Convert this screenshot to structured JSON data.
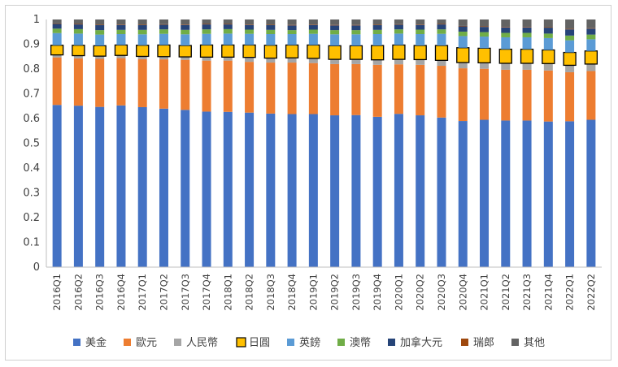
{
  "chart_data": {
    "type": "bar",
    "stacked": true,
    "title": "",
    "xlabel": "",
    "ylabel": "",
    "ylim": [
      0,
      1
    ],
    "yticks": [
      "0",
      "0.1",
      "0.2",
      "0.3",
      "0.4",
      "0.5",
      "0.6",
      "0.7",
      "0.8",
      "0.9",
      "1"
    ],
    "grid": false,
    "legend_position": "bottom",
    "categories": [
      "2016Q1",
      "2016Q2",
      "2016Q3",
      "2016Q4",
      "2017Q1",
      "2017Q2",
      "2017Q3",
      "2017Q4",
      "2018Q1",
      "2018Q2",
      "2018Q3",
      "2018Q4",
      "2019Q1",
      "2019Q2",
      "2019Q3",
      "2019Q4",
      "2020Q1",
      "2020Q2",
      "2020Q3",
      "2020Q4",
      "2021Q1",
      "2021Q2",
      "2021Q3",
      "2021Q4",
      "2022Q1",
      "2022Q2"
    ],
    "series": [
      {
        "name": "美金",
        "color": "#4472C4",
        "values": [
          0.655,
          0.652,
          0.647,
          0.653,
          0.646,
          0.64,
          0.635,
          0.628,
          0.627,
          0.624,
          0.62,
          0.618,
          0.618,
          0.613,
          0.614,
          0.607,
          0.619,
          0.613,
          0.604,
          0.59,
          0.595,
          0.592,
          0.592,
          0.588,
          0.589,
          0.595
        ]
      },
      {
        "name": "歐元",
        "color": "#ED7D31",
        "values": [
          0.192,
          0.191,
          0.194,
          0.191,
          0.194,
          0.199,
          0.202,
          0.206,
          0.207,
          0.205,
          0.206,
          0.208,
          0.206,
          0.207,
          0.206,
          0.21,
          0.2,
          0.204,
          0.209,
          0.213,
          0.206,
          0.205,
          0.205,
          0.206,
          0.198,
          0.197
        ]
      },
      {
        "name": "人民幣",
        "color": "#A5A5A5",
        "values": [
          0.01,
          0.011,
          0.011,
          0.011,
          0.011,
          0.011,
          0.012,
          0.014,
          0.014,
          0.018,
          0.018,
          0.019,
          0.019,
          0.019,
          0.019,
          0.02,
          0.02,
          0.021,
          0.022,
          0.023,
          0.024,
          0.026,
          0.026,
          0.028,
          0.028,
          0.028
        ]
      },
      {
        "name": "日圓",
        "color": "#FFC000",
        "values": [
          0.039,
          0.042,
          0.042,
          0.042,
          0.045,
          0.047,
          0.046,
          0.049,
          0.049,
          0.05,
          0.052,
          0.052,
          0.054,
          0.055,
          0.055,
          0.058,
          0.058,
          0.057,
          0.06,
          0.06,
          0.059,
          0.057,
          0.057,
          0.055,
          0.052,
          0.053
        ]
      },
      {
        "name": "英鎊",
        "color": "#5B9BD5",
        "values": [
          0.049,
          0.047,
          0.045,
          0.044,
          0.044,
          0.045,
          0.045,
          0.045,
          0.046,
          0.045,
          0.045,
          0.044,
          0.045,
          0.046,
          0.046,
          0.046,
          0.046,
          0.046,
          0.047,
          0.047,
          0.047,
          0.048,
          0.048,
          0.048,
          0.049,
          0.047
        ]
      },
      {
        "name": "澳幣",
        "color": "#70AD47",
        "values": [
          0.018,
          0.018,
          0.018,
          0.017,
          0.018,
          0.018,
          0.018,
          0.018,
          0.018,
          0.017,
          0.017,
          0.016,
          0.017,
          0.017,
          0.017,
          0.017,
          0.017,
          0.018,
          0.018,
          0.018,
          0.018,
          0.018,
          0.018,
          0.018,
          0.019,
          0.019
        ]
      },
      {
        "name": "加拿大元",
        "color": "#264478",
        "values": [
          0.019,
          0.019,
          0.02,
          0.02,
          0.019,
          0.019,
          0.02,
          0.02,
          0.019,
          0.019,
          0.019,
          0.019,
          0.019,
          0.019,
          0.019,
          0.019,
          0.019,
          0.019,
          0.02,
          0.021,
          0.021,
          0.022,
          0.022,
          0.024,
          0.025,
          0.024
        ]
      },
      {
        "name": "瑞郎",
        "color": "#9E480E",
        "values": [
          0.002,
          0.002,
          0.002,
          0.002,
          0.002,
          0.002,
          0.002,
          0.002,
          0.002,
          0.002,
          0.002,
          0.002,
          0.002,
          0.002,
          0.002,
          0.002,
          0.002,
          0.002,
          0.002,
          0.002,
          0.002,
          0.002,
          0.002,
          0.002,
          0.002,
          0.002
        ]
      },
      {
        "name": "其他",
        "color": "#636363",
        "values": [
          0.016,
          0.018,
          0.021,
          0.02,
          0.021,
          0.019,
          0.02,
          0.018,
          0.018,
          0.02,
          0.021,
          0.022,
          0.02,
          0.022,
          0.022,
          0.021,
          0.019,
          0.02,
          0.018,
          0.026,
          0.028,
          0.03,
          0.03,
          0.031,
          0.038,
          0.035
        ]
      }
    ]
  }
}
